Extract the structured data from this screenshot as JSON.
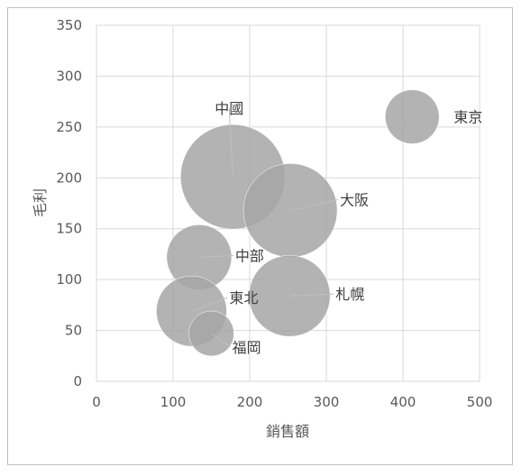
{
  "chart_data": {
    "type": "bubble",
    "xlabel": "銷售額",
    "ylabel": "毛利",
    "xlim": [
      0,
      500
    ],
    "ylim": [
      0,
      350
    ],
    "x_ticks": [
      0,
      100,
      200,
      300,
      400,
      500
    ],
    "y_ticks": [
      0,
      50,
      100,
      150,
      200,
      250,
      300,
      350
    ],
    "grid": true,
    "bubble_color": "#a6a6a6",
    "points": [
      {
        "label": "東京",
        "x": 412,
        "y": 260,
        "size": 30
      },
      {
        "label": "中國",
        "x": 178,
        "y": 201,
        "size": 58
      },
      {
        "label": "大阪",
        "x": 253,
        "y": 168,
        "size": 52
      },
      {
        "label": "中部",
        "x": 134,
        "y": 122,
        "size": 36
      },
      {
        "label": "札幌",
        "x": 252,
        "y": 84,
        "size": 45
      },
      {
        "label": "東北",
        "x": 124,
        "y": 69,
        "size": 39
      },
      {
        "label": "福岡",
        "x": 150,
        "y": 47,
        "size": 25
      }
    ]
  }
}
